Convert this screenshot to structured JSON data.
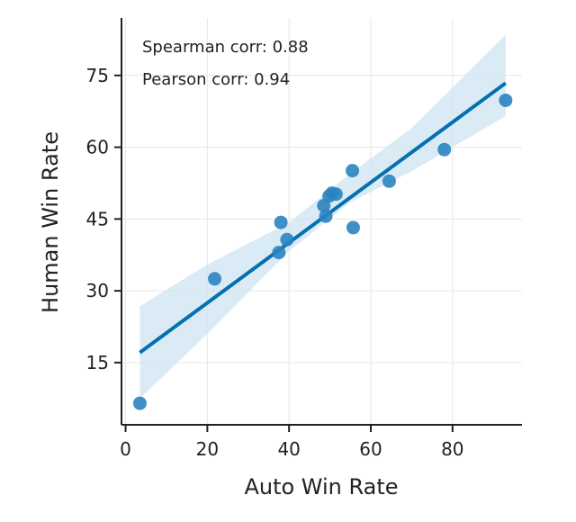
{
  "chart_data": {
    "type": "scatter",
    "title": "",
    "xlabel": "Auto Win Rate",
    "ylabel": "Human Win Rate",
    "xlim": [
      -1,
      97
    ],
    "ylim": [
      2,
      87
    ],
    "xticks": [
      0,
      20,
      40,
      60,
      80
    ],
    "yticks": [
      15,
      30,
      45,
      60,
      75
    ],
    "grid": true,
    "points": [
      {
        "x": 3.5,
        "y": 6.5
      },
      {
        "x": 21.8,
        "y": 32.5
      },
      {
        "x": 37.5,
        "y": 38.0
      },
      {
        "x": 38.0,
        "y": 44.3
      },
      {
        "x": 39.5,
        "y": 40.7
      },
      {
        "x": 48.5,
        "y": 47.8
      },
      {
        "x": 49.0,
        "y": 45.6
      },
      {
        "x": 49.8,
        "y": 49.8
      },
      {
        "x": 50.5,
        "y": 50.4
      },
      {
        "x": 51.5,
        "y": 50.2
      },
      {
        "x": 55.5,
        "y": 55.1
      },
      {
        "x": 55.7,
        "y": 43.2
      },
      {
        "x": 64.5,
        "y": 52.9
      },
      {
        "x": 78.0,
        "y": 59.5
      },
      {
        "x": 93.0,
        "y": 69.8
      }
    ],
    "regression": {
      "x_start": 3.5,
      "y_start": 17.1,
      "x_end": 93.0,
      "y_end": 73.4
    },
    "confidence_band": {
      "upper": [
        [
          3.5,
          26.8
        ],
        [
          20,
          35.5
        ],
        [
          40,
          44.3
        ],
        [
          55,
          54.5
        ],
        [
          70,
          64.0
        ],
        [
          93,
          83.5
        ]
      ],
      "lower": [
        [
          3.5,
          7.5
        ],
        [
          20,
          21.0
        ],
        [
          40,
          38.3
        ],
        [
          55,
          48.5
        ],
        [
          70,
          55.0
        ],
        [
          93,
          66.5
        ]
      ]
    },
    "annotations": [
      "Spearman corr: 0.88",
      "Pearson corr: 0.94"
    ],
    "colors": {
      "point": "#2a84c0",
      "line": "#0570b0",
      "band": "#cfe4f3"
    }
  }
}
